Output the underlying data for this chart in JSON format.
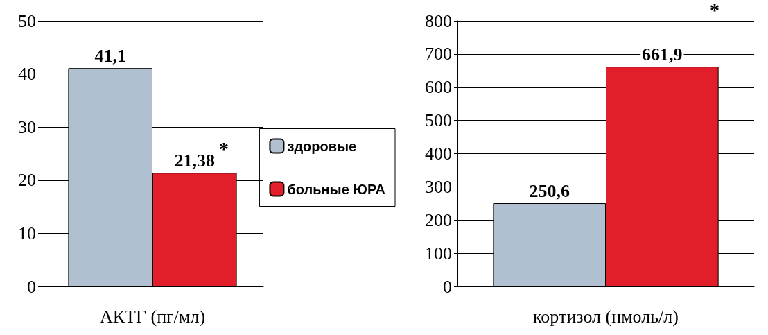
{
  "chart_data": [
    {
      "type": "bar",
      "xlabel": "АКТГ (пг/мл)",
      "categories": [
        null
      ],
      "series": [
        {
          "name": "здоровые",
          "color": "#b0c0d0",
          "values": [
            41.1
          ],
          "value_labels": [
            "41,1"
          ]
        },
        {
          "name": "больные ЮРА",
          "color": "#e31e2b",
          "values": [
            21.38
          ],
          "value_labels": [
            "21,38"
          ]
        }
      ],
      "ylim": [
        0,
        50
      ],
      "yticks": [
        0,
        10,
        20,
        30,
        40,
        50
      ],
      "grid": "y",
      "legend": "right",
      "annotations": [
        "*"
      ]
    },
    {
      "type": "bar",
      "xlabel": "кортизол (нмоль/л)",
      "categories": [
        null
      ],
      "series": [
        {
          "color": "#b0c0d0",
          "values": [
            250.6
          ],
          "value_labels": [
            "250,6"
          ]
        },
        {
          "color": "#e31e2b",
          "values": [
            661.9
          ],
          "value_labels": [
            "661,9"
          ]
        }
      ],
      "ylim": [
        0,
        800
      ],
      "yticks": [
        0,
        100,
        200,
        300,
        400,
        500,
        600,
        700,
        800
      ],
      "grid": "y",
      "annotations": [
        "*"
      ]
    }
  ]
}
